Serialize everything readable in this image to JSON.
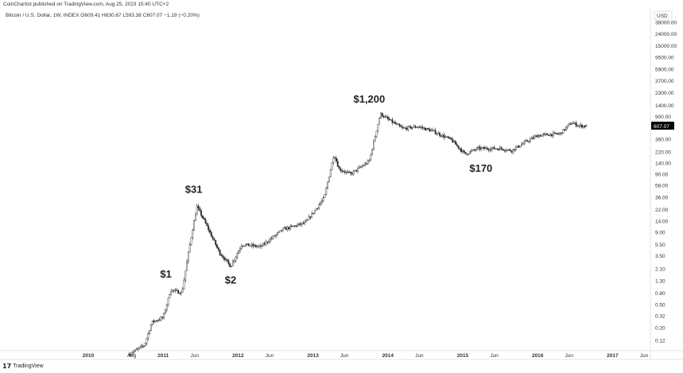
{
  "header": {
    "published": "CoinChartist published on TradingView.com, Aug 25, 2023 15:40 UTC+2",
    "legend": "Bitcoin / U.S. Dollar, 1W, INDEX  O609.41  H630.67  L593.38  C607.07  −1.19 (−0.20%)"
  },
  "footer": {
    "brand": "TradingView",
    "logo": "TV"
  },
  "chart_data": {
    "type": "candlestick",
    "currency": "USD",
    "scale": "log",
    "ylim": [
      0.1,
      38000
    ],
    "yticks": [
      "38000.00",
      "24000.00",
      "15000.00",
      "9500.00",
      "5900.00",
      "3700.00",
      "2300.00",
      "1400.00",
      "900.00",
      "360.00",
      "220.00",
      "140.00",
      "90.00",
      "58.00",
      "36.00",
      "22.00",
      "14.00",
      "9.00",
      "5.50",
      "3.50",
      "2.10",
      "1.30",
      "0.80",
      "0.50",
      "0.32",
      "0.20",
      "0.12"
    ],
    "yvalues": [
      38000,
      24000,
      15000,
      9500,
      5900,
      3700,
      2300,
      1400,
      900,
      360,
      220,
      140,
      90,
      58,
      36,
      22,
      14,
      9,
      5.5,
      3.5,
      2.1,
      1.3,
      0.8,
      0.5,
      0.32,
      0.2,
      0.12
    ],
    "xticks": [
      {
        "t": 2010,
        "label": "2010"
      },
      {
        "t": 2010.58,
        "label": "Aug"
      },
      {
        "t": 2011,
        "label": "2011"
      },
      {
        "t": 2011.42,
        "label": "Jun"
      },
      {
        "t": 2012,
        "label": "2012"
      },
      {
        "t": 2012.42,
        "label": "Jun"
      },
      {
        "t": 2013,
        "label": "2013"
      },
      {
        "t": 2013.42,
        "label": "Jun"
      },
      {
        "t": 2014,
        "label": "2014"
      },
      {
        "t": 2014.42,
        "label": "Jun"
      },
      {
        "t": 2015,
        "label": "2015"
      },
      {
        "t": 2015.42,
        "label": "Jun"
      },
      {
        "t": 2016,
        "label": "2016"
      },
      {
        "t": 2016.42,
        "label": "Jun"
      },
      {
        "t": 2017,
        "label": "2017"
      },
      {
        "t": 2017.42,
        "label": "Jun"
      }
    ],
    "last_price": "607.07",
    "series_keypoints": [
      [
        2010.55,
        0.07
      ],
      [
        2010.75,
        0.1
      ],
      [
        2010.85,
        0.25
      ],
      [
        2011.0,
        0.3
      ],
      [
        2011.1,
        0.9
      ],
      [
        2011.25,
        0.8
      ],
      [
        2011.35,
        5
      ],
      [
        2011.45,
        25
      ],
      [
        2011.55,
        14
      ],
      [
        2011.75,
        4
      ],
      [
        2011.9,
        2.3
      ],
      [
        2012.05,
        5.5
      ],
      [
        2012.3,
        5
      ],
      [
        2012.6,
        10
      ],
      [
        2012.9,
        13
      ],
      [
        2013.15,
        35
      ],
      [
        2013.28,
        200
      ],
      [
        2013.35,
        110
      ],
      [
        2013.5,
        90
      ],
      [
        2013.75,
        150
      ],
      [
        2013.9,
        1000
      ],
      [
        2014.0,
        800
      ],
      [
        2014.2,
        550
      ],
      [
        2014.4,
        600
      ],
      [
        2014.6,
        500
      ],
      [
        2014.85,
        350
      ],
      [
        2015.03,
        200
      ],
      [
        2015.2,
        250
      ],
      [
        2015.5,
        250
      ],
      [
        2015.65,
        230
      ],
      [
        2015.85,
        330
      ],
      [
        2016.0,
        420
      ],
      [
        2016.3,
        450
      ],
      [
        2016.45,
        700
      ],
      [
        2016.55,
        620
      ],
      [
        2016.65,
        607
      ]
    ],
    "annotations": [
      {
        "text": "$1,200",
        "t": 2013.9,
        "p": 1200
      },
      {
        "text": "$31",
        "t": 2011.45,
        "p": 31
      },
      {
        "text": "$1",
        "t": 2011.1,
        "p": 1
      },
      {
        "text": "$2",
        "t": 2011.9,
        "p": 2
      },
      {
        "text": "$170",
        "t": 2015.03,
        "p": 170
      }
    ]
  }
}
